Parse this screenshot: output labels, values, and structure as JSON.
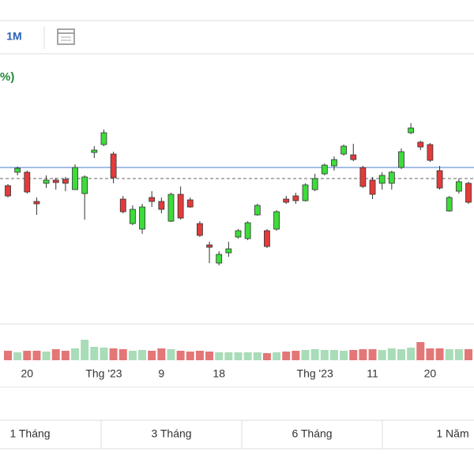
{
  "toolbar": {
    "interval": "1M"
  },
  "change_text": "%)",
  "chart_data": {
    "type": "candlestick",
    "categories": [
      null,
      null,
      "20",
      null,
      null,
      null,
      null,
      null,
      null,
      null,
      "Thg '23",
      null,
      null,
      null,
      null,
      null,
      "9",
      null,
      null,
      null,
      null,
      null,
      "18",
      null,
      null,
      null,
      null,
      null,
      null,
      null,
      null,
      null,
      "Thg '23",
      null,
      null,
      null,
      null,
      null,
      "11",
      null,
      null,
      null,
      null,
      null,
      "20",
      null,
      null,
      null,
      null
    ],
    "open": [
      175,
      192,
      192,
      155,
      178,
      182,
      183,
      170,
      165,
      217,
      227,
      215,
      158,
      127,
      120,
      160,
      155,
      130,
      164,
      157,
      127,
      100,
      77,
      90,
      110,
      108,
      138,
      118,
      120,
      158,
      162,
      156,
      170,
      190,
      200,
      215,
      214,
      198,
      182,
      178,
      178,
      198,
      242,
      230,
      227,
      194,
      143,
      168,
      178
    ],
    "close": [
      162,
      197,
      167,
      152,
      182,
      179,
      178,
      198,
      186,
      220,
      242,
      185,
      142,
      145,
      148,
      155,
      145,
      164,
      134,
      148,
      112,
      97,
      88,
      95,
      118,
      128,
      150,
      98,
      142,
      154,
      156,
      176,
      184,
      201,
      208,
      225,
      208,
      174,
      164,
      188,
      192,
      218,
      248,
      224,
      207,
      172,
      160,
      180,
      154
    ],
    "high": [
      177,
      199,
      194,
      160,
      188,
      185,
      186,
      202,
      188,
      225,
      246,
      218,
      162,
      150,
      152,
      168,
      160,
      166,
      174,
      160,
      130,
      104,
      92,
      104,
      120,
      130,
      152,
      120,
      144,
      162,
      166,
      178,
      190,
      203,
      212,
      227,
      228,
      200,
      186,
      192,
      194,
      222,
      254,
      232,
      229,
      200,
      162,
      184,
      180
    ],
    "low": [
      160,
      188,
      165,
      138,
      172,
      170,
      168,
      170,
      132,
      210,
      225,
      178,
      140,
      125,
      114,
      148,
      140,
      129,
      132,
      147,
      110,
      77,
      74,
      85,
      108,
      106,
      137,
      96,
      118,
      152,
      152,
      155,
      168,
      188,
      194,
      213,
      206,
      172,
      158,
      170,
      170,
      196,
      240,
      220,
      205,
      170,
      142,
      165,
      152
    ],
    "volume": [
      12,
      10,
      12,
      12,
      11,
      14,
      12,
      15,
      26,
      17,
      16,
      15,
      14,
      12,
      13,
      12,
      15,
      14,
      12,
      11,
      12,
      11,
      10,
      10,
      10,
      10,
      10,
      9,
      10,
      11,
      12,
      13,
      14,
      13,
      13,
      12,
      13,
      14,
      14,
      13,
      15,
      14,
      16,
      23,
      15,
      15,
      14,
      14,
      14
    ],
    "ylim": [
      0,
      300
    ],
    "volume_ylim": [
      0,
      30
    ],
    "last_price_line": 198,
    "reference_line": 184,
    "up_color": "#3ddc3a",
    "down_color": "#e23b3b",
    "volume_up_color": "#a9dcb8",
    "volume_down_color": "#e37777"
  },
  "range_buttons": [
    "1 Tháng",
    "3 Tháng",
    "6 Tháng",
    "1 Năm"
  ]
}
